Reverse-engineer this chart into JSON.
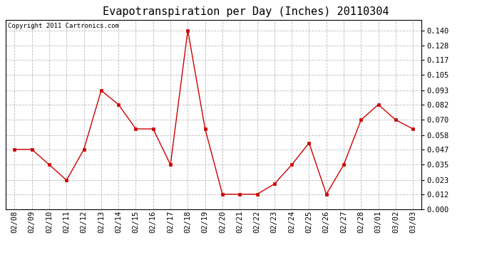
{
  "title": "Evapotranspiration per Day (Inches) 20110304",
  "copyright": "Copyright 2011 Cartronics.com",
  "dates": [
    "02/08",
    "02/09",
    "02/10",
    "02/11",
    "02/12",
    "02/13",
    "02/14",
    "02/15",
    "02/16",
    "02/17",
    "02/18",
    "02/19",
    "02/20",
    "02/21",
    "02/22",
    "02/23",
    "02/24",
    "02/25",
    "02/26",
    "02/27",
    "02/28",
    "03/01",
    "03/02",
    "03/03"
  ],
  "values": [
    0.047,
    0.047,
    0.035,
    0.023,
    0.047,
    0.093,
    0.082,
    0.063,
    0.063,
    0.035,
    0.14,
    0.063,
    0.012,
    0.012,
    0.012,
    0.02,
    0.035,
    0.052,
    0.012,
    0.035,
    0.07,
    0.082,
    0.07,
    0.063
  ],
  "yticks": [
    0.0,
    0.012,
    0.023,
    0.035,
    0.047,
    0.058,
    0.07,
    0.082,
    0.093,
    0.105,
    0.117,
    0.128,
    0.14
  ],
  "line_color": "#cc0000",
  "marker_color": "#cc0000",
  "bg_color": "#ffffff",
  "grid_color": "#bbbbbb",
  "title_fontsize": 11,
  "copyright_fontsize": 6.5,
  "tick_fontsize": 7.5,
  "ylim": [
    0.0,
    0.148
  ]
}
